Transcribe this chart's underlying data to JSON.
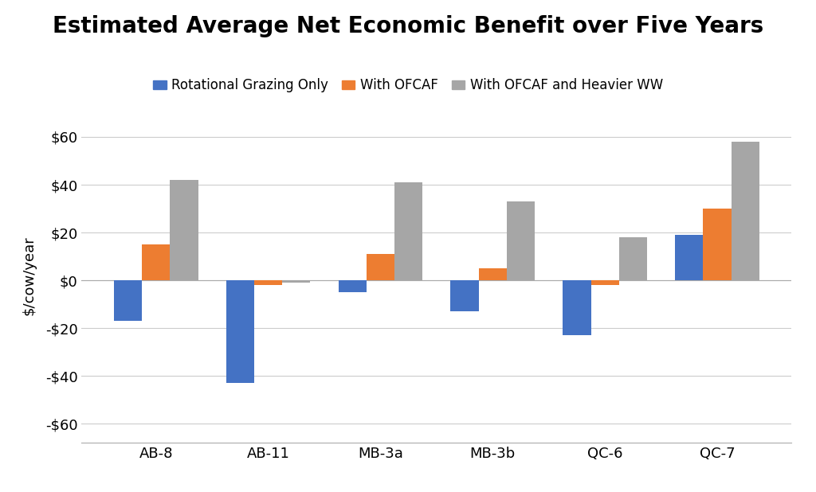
{
  "title": "Estimated Average Net Economic Benefit over Five Years",
  "categories": [
    "AB-8",
    "AB-11",
    "MB-3a",
    "MB-3b",
    "QC-6",
    "QC-7"
  ],
  "series": [
    {
      "label": "Rotational Grazing Only",
      "color": "#4472C4",
      "values": [
        -17,
        -43,
        -5,
        -13,
        -23,
        19
      ]
    },
    {
      "label": "With OFCAF",
      "color": "#ED7D31",
      "values": [
        15,
        -2,
        11,
        5,
        -2,
        30
      ]
    },
    {
      "label": "With OFCAF and Heavier WW",
      "color": "#A6A6A6",
      "values": [
        42,
        -1,
        41,
        33,
        18,
        58
      ]
    }
  ],
  "ylabel": "$/cow/year",
  "ylim": [
    -68,
    72
  ],
  "yticks": [
    -60,
    -40,
    -20,
    0,
    20,
    40,
    60
  ],
  "ytick_labels": [
    "-$60",
    "-$40",
    "-$20",
    "$0",
    "$20",
    "$40",
    "$60"
  ],
  "background_color": "#FFFFFF",
  "grid_color": "#CCCCCC",
  "title_fontsize": 20,
  "label_fontsize": 13,
  "tick_fontsize": 13,
  "legend_fontsize": 12,
  "bar_width": 0.25
}
